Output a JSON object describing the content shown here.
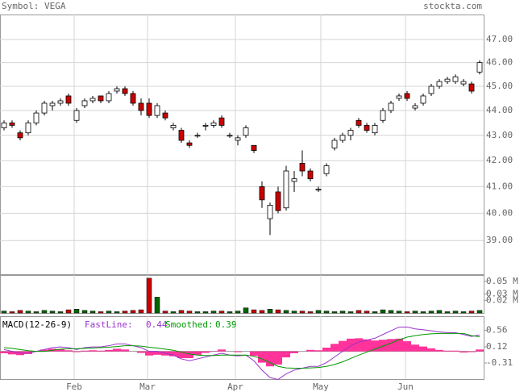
{
  "chart_data": [
    {
      "type": "candlestick",
      "title": "Symbol: VEGA",
      "source": "stockta.com",
      "log_scale": true,
      "grid": true,
      "up_color": "#ffffff",
      "down_color": "#cc0000",
      "open": [
        43.3,
        43.5,
        43.1,
        43.1,
        43.5,
        43.9,
        44.2,
        44.3,
        44.6,
        43.6,
        44.2,
        44.4,
        44.6,
        44.4,
        44.8,
        44.9,
        44.7,
        44.3,
        44.3,
        43.8,
        43.9,
        43.3,
        43.2,
        42.7,
        43.0,
        43.4,
        43.4,
        43.7,
        43.0,
        42.8,
        43.0,
        42.6,
        41.0,
        39.8,
        40.8,
        40.2,
        41.2,
        41.9,
        41.6,
        40.9,
        41.5,
        42.5,
        42.8,
        43.0,
        43.6,
        43.4,
        43.1,
        43.6,
        44.0,
        44.5,
        44.7,
        44.1,
        44.3,
        44.7,
        45.0,
        45.2,
        45.2,
        45.1,
        45.1,
        45.6
      ],
      "high": [
        43.6,
        43.6,
        43.2,
        43.6,
        44.0,
        44.4,
        44.4,
        44.5,
        44.7,
        44.1,
        44.5,
        44.6,
        44.6,
        44.8,
        45.0,
        45.0,
        44.8,
        44.5,
        44.5,
        44.3,
        44.0,
        43.5,
        43.3,
        42.8,
        43.1,
        43.5,
        43.6,
        43.8,
        43.1,
        43.0,
        43.4,
        42.6,
        41.2,
        40.4,
        41.0,
        41.8,
        41.6,
        42.4,
        41.7,
        41.0,
        41.9,
        42.9,
        43.1,
        43.3,
        43.7,
        43.5,
        43.5,
        44.1,
        44.4,
        44.7,
        44.8,
        44.3,
        44.7,
        45.1,
        45.3,
        45.4,
        45.5,
        45.3,
        45.2,
        46.1
      ],
      "low": [
        43.2,
        43.3,
        42.8,
        43.0,
        43.4,
        43.8,
        44.0,
        44.2,
        44.2,
        43.5,
        44.1,
        44.3,
        44.3,
        44.3,
        44.7,
        44.6,
        44.2,
        43.8,
        43.7,
        43.7,
        43.6,
        43.2,
        42.7,
        42.5,
        42.9,
        43.2,
        43.3,
        43.3,
        42.9,
        42.6,
        42.9,
        42.3,
        40.2,
        39.2,
        40.0,
        40.1,
        40.8,
        41.4,
        41.2,
        40.8,
        41.4,
        42.4,
        42.7,
        42.8,
        43.3,
        43.1,
        43.0,
        43.5,
        43.9,
        44.4,
        44.4,
        44.0,
        44.2,
        44.6,
        44.9,
        45.1,
        45.1,
        45.0,
        44.7,
        45.5
      ],
      "close": [
        43.5,
        43.4,
        42.9,
        43.5,
        43.9,
        44.3,
        44.3,
        44.4,
        44.3,
        44.0,
        44.4,
        44.5,
        44.4,
        44.7,
        44.9,
        44.7,
        44.3,
        44.0,
        43.8,
        44.2,
        43.7,
        43.4,
        42.8,
        42.6,
        43.0,
        43.4,
        43.5,
        43.4,
        43.0,
        42.9,
        43.3,
        42.4,
        40.5,
        40.3,
        40.1,
        41.6,
        41.3,
        41.6,
        41.3,
        40.9,
        41.8,
        42.8,
        43.0,
        43.2,
        43.4,
        43.2,
        43.4,
        44.0,
        44.3,
        44.6,
        44.5,
        44.2,
        44.6,
        45.0,
        45.2,
        45.3,
        45.4,
        45.2,
        44.8,
        46.0
      ],
      "ylim": [
        37.8,
        48.1
      ],
      "yticks": [
        {
          "value": 39,
          "label": "39.00"
        },
        {
          "value": 40,
          "label": "40.00"
        },
        {
          "value": 41,
          "label": "41.00"
        },
        {
          "value": 42,
          "label": "42.00"
        },
        {
          "value": 43,
          "label": "43.00"
        },
        {
          "value": 44,
          "label": "44.00"
        },
        {
          "value": 45,
          "label": "45.00"
        },
        {
          "value": 46,
          "label": "46.00"
        },
        {
          "value": 47,
          "label": "47.00"
        }
      ],
      "xlim": [
        0,
        60
      ],
      "xticks": [
        {
          "value": 9.2,
          "label": "Feb"
        },
        {
          "value": 18.3,
          "label": "Mar"
        },
        {
          "value": 29.2,
          "label": "Apr"
        },
        {
          "value": 39.8,
          "label": "May"
        },
        {
          "value": 50.3,
          "label": "Jun"
        }
      ]
    },
    {
      "type": "bar",
      "up_color": "#006600",
      "down_color": "#cc0000",
      "values": [
        0.003,
        0.002,
        0.004,
        0.003,
        0.002,
        0.004,
        0.003,
        0.002,
        0.005,
        0.006,
        0.004,
        0.003,
        0.002,
        0.003,
        0.002,
        0.003,
        0.004,
        0.005,
        0.055,
        0.025,
        0.003,
        0.002,
        0.004,
        0.003,
        0.002,
        0.002,
        0.003,
        0.003,
        0.002,
        0.003,
        0.008,
        0.005,
        0.004,
        0.006,
        0.005,
        0.004,
        0.003,
        0.003,
        0.002,
        0.004,
        0.003,
        0.002,
        0.003,
        0.002,
        0.004,
        0.003,
        0.002,
        0.005,
        0.004,
        0.003,
        0.002,
        0.003,
        0.002,
        0.003,
        0.004,
        0.002,
        0.003,
        0.002,
        0.003,
        0.004
      ],
      "ylim": [
        0,
        0.06
      ],
      "yticks": [
        {
          "value": 0.02,
          "label": "0.02 M"
        },
        {
          "value": 0.03,
          "label": "0.03 M"
        },
        {
          "value": 0.05,
          "label": "0.05 M"
        }
      ]
    },
    {
      "type": "line",
      "title": "MACD(12-26-9)",
      "series": [
        {
          "name": "FastLine:",
          "color": "#9933cc",
          "values": [
            0.05,
            0.0,
            -0.05,
            -0.05,
            0.0,
            0.05,
            0.1,
            0.12,
            0.1,
            0.05,
            0.1,
            0.12,
            0.12,
            0.15,
            0.2,
            0.2,
            0.15,
            0.1,
            0.0,
            0.0,
            -0.05,
            -0.1,
            -0.2,
            -0.25,
            -0.2,
            -0.15,
            -0.1,
            -0.05,
            -0.1,
            -0.12,
            -0.1,
            -0.25,
            -0.5,
            -0.7,
            -0.75,
            -0.6,
            -0.5,
            -0.45,
            -0.4,
            -0.4,
            -0.3,
            -0.15,
            0.0,
            0.15,
            0.25,
            0.3,
            0.35,
            0.45,
            0.55,
            0.65,
            0.65,
            0.6,
            0.58,
            0.55,
            0.52,
            0.5,
            0.5,
            0.45,
            0.4,
            0.44
          ]
        },
        {
          "name": "Smoothed:",
          "color": "#009900",
          "values": [
            0.1,
            0.08,
            0.05,
            0.02,
            0.0,
            0.0,
            0.03,
            0.06,
            0.07,
            0.07,
            0.08,
            0.09,
            0.1,
            0.11,
            0.13,
            0.15,
            0.15,
            0.14,
            0.11,
            0.09,
            0.06,
            0.03,
            -0.02,
            -0.07,
            -0.1,
            -0.11,
            -0.11,
            -0.1,
            -0.1,
            -0.1,
            -0.1,
            -0.13,
            -0.2,
            -0.3,
            -0.4,
            -0.44,
            -0.45,
            -0.45,
            -0.44,
            -0.43,
            -0.4,
            -0.35,
            -0.28,
            -0.19,
            -0.1,
            -0.02,
            0.06,
            0.14,
            0.22,
            0.31,
            0.38,
            0.42,
            0.45,
            0.47,
            0.48,
            0.48,
            0.48,
            0.48,
            0.42,
            0.39
          ]
        }
      ],
      "histogram": {
        "color": "#ff3399",
        "values": [
          -0.05,
          -0.08,
          -0.1,
          -0.07,
          0,
          0.05,
          0.07,
          0.06,
          0.03,
          -0.02,
          0.02,
          0.03,
          0.02,
          0.04,
          0.07,
          0.05,
          0,
          -0.04,
          -0.11,
          -0.09,
          -0.11,
          -0.13,
          -0.18,
          -0.18,
          -0.1,
          -0.04,
          0.01,
          0.05,
          0,
          -0.02,
          0,
          -0.12,
          -0.3,
          -0.4,
          -0.35,
          -0.16,
          -0.05,
          0,
          0.04,
          0.03,
          0.1,
          0.2,
          0.28,
          0.34,
          0.35,
          0.32,
          0.29,
          0.31,
          0.33,
          0.34,
          0.27,
          0.18,
          0.13,
          0.08,
          0.04,
          0.02,
          0.02,
          -0.03,
          -0.02,
          0.05
        ]
      },
      "ylim": [
        -0.74,
        0.94
      ],
      "yticks": [
        -0.31,
        0.12,
        0.56
      ]
    }
  ]
}
